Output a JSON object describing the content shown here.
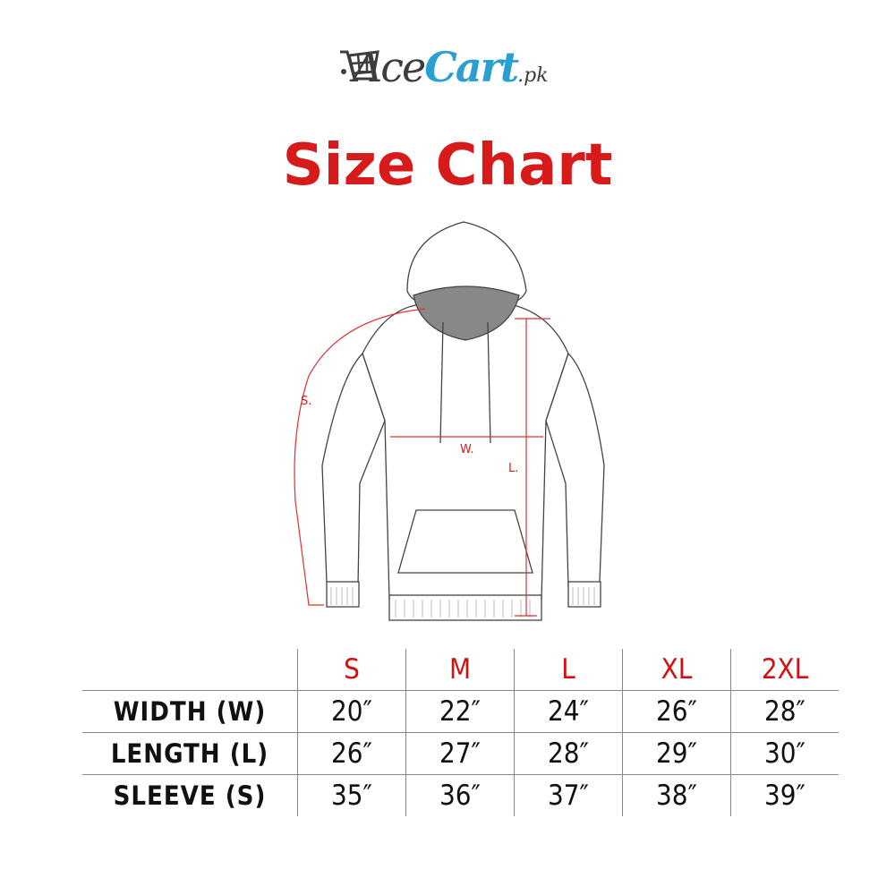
{
  "logo": {
    "brand_part1": "Ace",
    "brand_part2": "Cart",
    "suffix": ".pk",
    "icon": "shopping-cart-icon",
    "colors": {
      "dark": "#3d3d3d",
      "blue": "#2a9fd0"
    }
  },
  "title": "Size Chart",
  "accent_color": "#d71a1a",
  "diagram": {
    "labels": {
      "sleeve": "S.",
      "width": "W.",
      "length": "L."
    }
  },
  "table": {
    "sizes": [
      "S",
      "M",
      "L",
      "XL",
      "2XL"
    ],
    "rows": [
      {
        "label": "WIDTH (W)",
        "values": [
          "20″",
          "22″",
          "24″",
          "26″",
          "28″"
        ]
      },
      {
        "label": "LENGTH (L)",
        "values": [
          "26″",
          "27″",
          "28″",
          "29″",
          "30″"
        ]
      },
      {
        "label": "SLEEVE (S)",
        "values": [
          "35″",
          "36″",
          "37″",
          "38″",
          "39″"
        ]
      }
    ]
  }
}
